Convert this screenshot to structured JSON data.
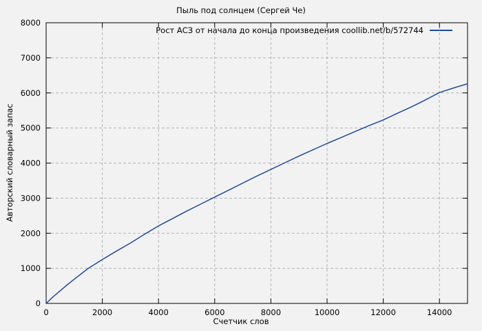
{
  "window": {
    "background": "#f2f2f2"
  },
  "chart_data": {
    "type": "line",
    "title": "Пыль под солнцем (Сергей Че)",
    "xlabel": "Счетчик слов",
    "ylabel": "Авторский словарный запас",
    "legend": "Рост АСЗ от начала до конца произведения coollib.net/b/572744",
    "legend_position": "top-right-inside",
    "xlim": [
      0,
      15000
    ],
    "ylim": [
      0,
      8000
    ],
    "xticks": [
      0,
      2000,
      4000,
      6000,
      8000,
      10000,
      12000,
      14000
    ],
    "yticks": [
      0,
      1000,
      2000,
      3000,
      4000,
      5000,
      6000,
      7000,
      8000
    ],
    "grid": true,
    "grid_color": "#b3b3b3",
    "border_color": "#000000",
    "line_color": "#1c4b9c",
    "text_color": "#000000",
    "series": [
      {
        "name": "Рост АСЗ от начала до конца произведения coollib.net/b/572744",
        "points": [
          [
            0,
            0
          ],
          [
            250,
            190
          ],
          [
            500,
            360
          ],
          [
            750,
            530
          ],
          [
            1000,
            690
          ],
          [
            1500,
            1000
          ],
          [
            2000,
            1250
          ],
          [
            2500,
            1490
          ],
          [
            3000,
            1720
          ],
          [
            3500,
            1970
          ],
          [
            4000,
            2210
          ],
          [
            4500,
            2420
          ],
          [
            5000,
            2630
          ],
          [
            5500,
            2830
          ],
          [
            6000,
            3030
          ],
          [
            6500,
            3230
          ],
          [
            7000,
            3430
          ],
          [
            7500,
            3630
          ],
          [
            8000,
            3820
          ],
          [
            8500,
            4010
          ],
          [
            9000,
            4200
          ],
          [
            9500,
            4380
          ],
          [
            10000,
            4560
          ],
          [
            10500,
            4730
          ],
          [
            11000,
            4900
          ],
          [
            11500,
            5070
          ],
          [
            12000,
            5230
          ],
          [
            12500,
            5420
          ],
          [
            13000,
            5600
          ],
          [
            13500,
            5800
          ],
          [
            14000,
            6010
          ],
          [
            14500,
            6140
          ],
          [
            15000,
            6260
          ]
        ]
      }
    ]
  }
}
